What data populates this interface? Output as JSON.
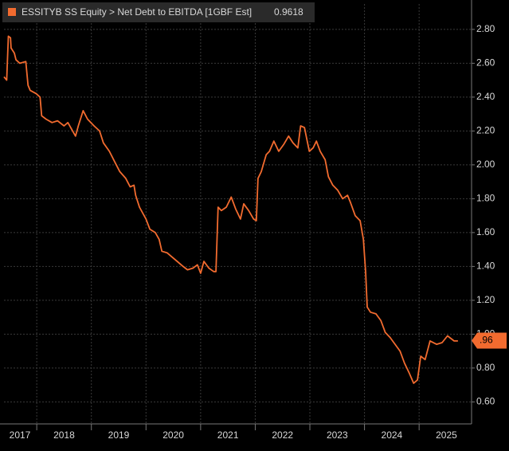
{
  "chart_data": {
    "type": "line",
    "series": [
      {
        "name": "ESSITYB SS Equity > Net Debt to EBITDA [1GBF Est]",
        "color": "#f26b2f",
        "x": [
          2017.4,
          2017.45,
          2017.48,
          2017.52,
          2017.53,
          2017.59,
          2017.62,
          2017.69,
          2017.8,
          2017.84,
          2017.88,
          2017.99,
          2018.06,
          2018.09,
          2018.17,
          2018.28,
          2018.38,
          2018.5,
          2018.57,
          2018.64,
          2018.71,
          2018.76,
          2018.85,
          2018.93,
          2019.05,
          2019.15,
          2019.22,
          2019.33,
          2019.44,
          2019.52,
          2019.63,
          2019.71,
          2019.78,
          2019.81,
          2019.88,
          2020.0,
          2020.07,
          2020.17,
          2020.24,
          2020.29,
          2020.39,
          2020.46,
          2020.57,
          2020.68,
          2020.76,
          2020.86,
          2020.94,
          2021.0,
          2021.06,
          2021.15,
          2021.24,
          2021.28,
          2021.32,
          2021.38,
          2021.47,
          2021.56,
          2021.64,
          2021.73,
          2021.79,
          2021.88,
          2021.97,
          2022.02,
          2022.05,
          2022.11,
          2022.2,
          2022.26,
          2022.34,
          2022.43,
          2022.52,
          2022.61,
          2022.69,
          2022.78,
          2022.83,
          2022.9,
          2022.99,
          2023.06,
          2023.12,
          2023.19,
          2023.28,
          2023.34,
          2023.42,
          2023.51,
          2023.6,
          2023.69,
          2023.74,
          2023.83,
          2023.92,
          2023.98,
          2024.02,
          2024.05,
          2024.11,
          2024.21,
          2024.3,
          2024.38,
          2024.47,
          2024.56,
          2024.65,
          2024.73,
          2024.82,
          2024.9,
          2024.97,
          2025.03,
          2025.11,
          2025.2,
          2025.32,
          2025.42,
          2025.52,
          2025.64,
          2025.71
        ],
        "values": [
          2.52,
          2.5,
          2.76,
          2.75,
          2.69,
          2.66,
          2.62,
          2.6,
          2.61,
          2.47,
          2.44,
          2.42,
          2.4,
          2.29,
          2.27,
          2.25,
          2.26,
          2.23,
          2.25,
          2.21,
          2.17,
          2.23,
          2.32,
          2.27,
          2.23,
          2.2,
          2.13,
          2.08,
          2.01,
          1.96,
          1.92,
          1.87,
          1.88,
          1.82,
          1.75,
          1.68,
          1.62,
          1.6,
          1.56,
          1.49,
          1.48,
          1.46,
          1.43,
          1.4,
          1.38,
          1.39,
          1.41,
          1.36,
          1.43,
          1.39,
          1.37,
          1.37,
          1.75,
          1.73,
          1.75,
          1.81,
          1.74,
          1.68,
          1.77,
          1.73,
          1.68,
          1.67,
          1.92,
          1.96,
          2.06,
          2.08,
          2.14,
          2.08,
          2.12,
          2.17,
          2.13,
          2.1,
          2.23,
          2.22,
          2.08,
          2.1,
          2.14,
          2.08,
          2.03,
          1.93,
          1.88,
          1.85,
          1.8,
          1.82,
          1.78,
          1.7,
          1.67,
          1.56,
          1.37,
          1.16,
          1.13,
          1.12,
          1.08,
          1.01,
          0.98,
          0.94,
          0.9,
          0.83,
          0.77,
          0.71,
          0.73,
          0.87,
          0.85,
          0.96,
          0.94,
          0.95,
          0.99,
          0.96,
          0.96
        ]
      }
    ],
    "current_value": {
      "value": 0.9618,
      "label": ".96"
    },
    "xlim": [
      2017.4,
      2025.96
    ],
    "xticks": [
      {
        "value": 2017.5,
        "label": "2017"
      },
      {
        "value": 2018.5,
        "label": "2018"
      },
      {
        "value": 2019.5,
        "label": "2019"
      },
      {
        "value": 2020.5,
        "label": "2020"
      },
      {
        "value": 2021.5,
        "label": "2021"
      },
      {
        "value": 2022.5,
        "label": "2022"
      },
      {
        "value": 2023.5,
        "label": "2023"
      },
      {
        "value": 2024.5,
        "label": "2024"
      },
      {
        "value": 2025.5,
        "label": "2025"
      }
    ],
    "xgrid": [
      2018,
      2019,
      2020,
      2021,
      2022,
      2023,
      2024,
      2025
    ],
    "ylim": [
      0.47,
      2.95
    ],
    "yticks": [
      {
        "value": 0.6,
        "label": "0.60"
      },
      {
        "value": 0.8,
        "label": "0.80"
      },
      {
        "value": 1.0,
        "label": "1.00"
      },
      {
        "value": 1.2,
        "label": "1.20"
      },
      {
        "value": 1.4,
        "label": "1.40"
      },
      {
        "value": 1.6,
        "label": "1.60"
      },
      {
        "value": 1.8,
        "label": "1.80"
      },
      {
        "value": 2.0,
        "label": "2.00"
      },
      {
        "value": 2.2,
        "label": "2.20"
      },
      {
        "value": 2.4,
        "label": "2.40"
      },
      {
        "value": 2.6,
        "label": "2.60"
      },
      {
        "value": 2.8,
        "label": "2.80"
      }
    ],
    "grid": true
  }
}
